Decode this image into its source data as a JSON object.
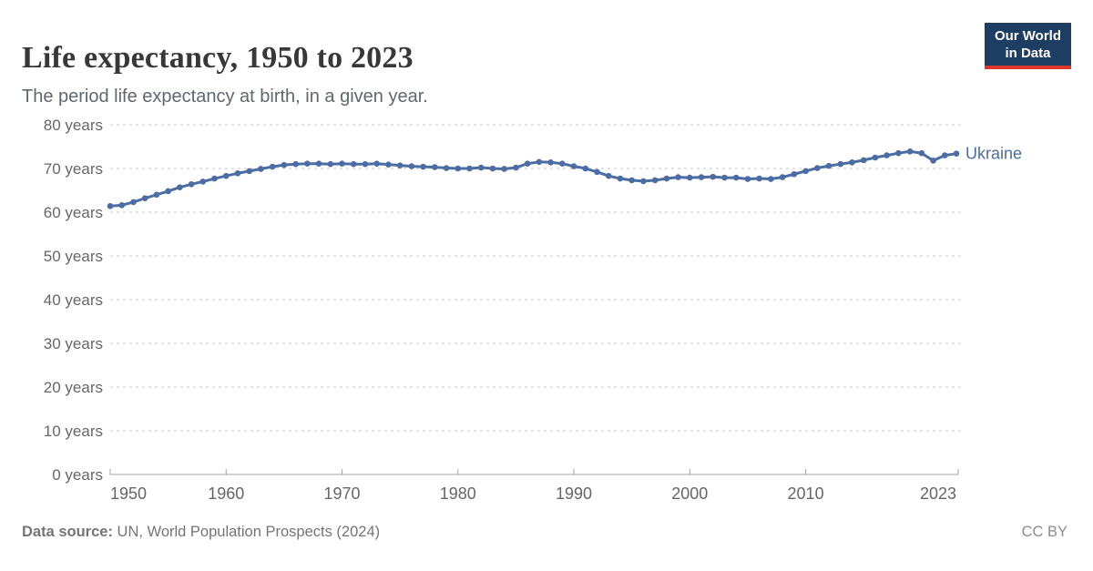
{
  "header": {
    "title": "Life expectancy, 1950 to 2023",
    "subtitle": "The period life expectancy at birth, in a given year."
  },
  "logo": {
    "line1": "Our World",
    "line2": "in Data",
    "bg_color": "#1d3d63",
    "accent_color": "#dc352b"
  },
  "chart_data": {
    "type": "line",
    "title": "Life expectancy, 1950 to 2023",
    "xlabel": "",
    "ylabel": "",
    "xlim": [
      1950,
      2023
    ],
    "ylim": [
      0,
      80
    ],
    "grid": "horizontal-dashed",
    "legend_position": "end-of-line-label",
    "grid_color": "#dadada",
    "axis_color": "#a3a3a3",
    "tick_label_color": "#666666",
    "x_ticks": [
      {
        "value": 1950,
        "label": "1950"
      },
      {
        "value": 1960,
        "label": "1960"
      },
      {
        "value": 1970,
        "label": "1970"
      },
      {
        "value": 1980,
        "label": "1980"
      },
      {
        "value": 1990,
        "label": "1990"
      },
      {
        "value": 2000,
        "label": "2000"
      },
      {
        "value": 2010,
        "label": "2010"
      },
      {
        "value": 2023,
        "label": "2023"
      }
    ],
    "y_ticks": [
      {
        "value": 0,
        "label": "0 years"
      },
      {
        "value": 10,
        "label": "10 years"
      },
      {
        "value": 20,
        "label": "20 years"
      },
      {
        "value": 30,
        "label": "30 years"
      },
      {
        "value": 40,
        "label": "40 years"
      },
      {
        "value": 50,
        "label": "50 years"
      },
      {
        "value": 60,
        "label": "60 years"
      },
      {
        "value": 70,
        "label": "70 years"
      },
      {
        "value": 80,
        "label": "80 years"
      }
    ],
    "series": [
      {
        "name": "Ukraine",
        "color": "#4C6CA4",
        "x": [
          1950,
          1951,
          1952,
          1953,
          1954,
          1955,
          1956,
          1957,
          1958,
          1959,
          1960,
          1961,
          1962,
          1963,
          1964,
          1965,
          1966,
          1967,
          1968,
          1969,
          1970,
          1971,
          1972,
          1973,
          1974,
          1975,
          1976,
          1977,
          1978,
          1979,
          1980,
          1981,
          1982,
          1983,
          1984,
          1985,
          1986,
          1987,
          1988,
          1989,
          1990,
          1991,
          1992,
          1993,
          1994,
          1995,
          1996,
          1997,
          1998,
          1999,
          2000,
          2001,
          2002,
          2003,
          2004,
          2005,
          2006,
          2007,
          2008,
          2009,
          2010,
          2011,
          2012,
          2013,
          2014,
          2015,
          2016,
          2017,
          2018,
          2019,
          2020,
          2021,
          2022,
          2023
        ],
        "values": [
          61.4,
          61.6,
          62.3,
          63.2,
          64.0,
          64.8,
          65.7,
          66.4,
          67.0,
          67.7,
          68.3,
          68.9,
          69.4,
          69.9,
          70.4,
          70.8,
          71.0,
          71.1,
          71.1,
          71.0,
          71.1,
          71.0,
          71.0,
          71.1,
          70.9,
          70.7,
          70.5,
          70.4,
          70.3,
          70.1,
          70.0,
          70.0,
          70.2,
          70.0,
          69.9,
          70.2,
          71.1,
          71.5,
          71.4,
          71.1,
          70.5,
          70.0,
          69.2,
          68.3,
          67.7,
          67.3,
          67.1,
          67.3,
          67.7,
          68.0,
          67.9,
          68.0,
          68.1,
          67.9,
          67.9,
          67.6,
          67.7,
          67.6,
          68.0,
          68.7,
          69.4,
          70.1,
          70.6,
          71.0,
          71.4,
          71.9,
          72.5,
          73.0,
          73.5,
          73.9,
          73.5,
          71.8,
          73.0,
          73.4
        ]
      }
    ]
  },
  "footer": {
    "source_label": "Data source:",
    "source_text": " UN, World Population Prospects (2024)",
    "license": "CC BY"
  }
}
